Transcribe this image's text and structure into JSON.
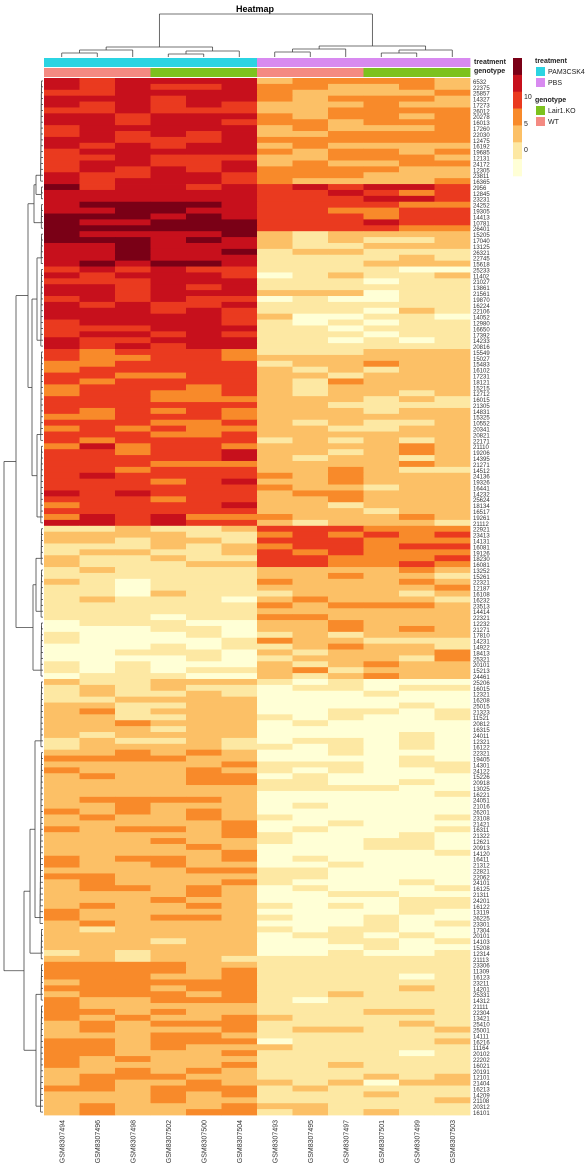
{
  "chart_data": {
    "type": "heatmap",
    "title": "Heatmap",
    "columns": [
      "GSM8307494",
      "GSM8307496",
      "GSM8307498",
      "GSM8307502",
      "GSM8307500",
      "GSM8307504",
      "GSM8307493",
      "GSM8307495",
      "GSM8307497",
      "GSM8307501",
      "GSM8307499",
      "GSM8307503"
    ],
    "annotations": {
      "treatment": {
        "label": "treatment",
        "values": [
          "PAM3CSK4",
          "PAM3CSK4",
          "PAM3CSK4",
          "PAM3CSK4",
          "PAM3CSK4",
          "PAM3CSK4",
          "PBS",
          "PBS",
          "PBS",
          "PBS",
          "PBS",
          "PBS"
        ]
      },
      "genotype": {
        "label": "genotype",
        "values": [
          "WT",
          "WT",
          "WT",
          "Lair1.KO",
          "Lair1.KO",
          "Lair1.KO",
          "WT",
          "WT",
          "WT",
          "Lair1.KO",
          "Lair1.KO",
          "Lair1.KO"
        ]
      }
    },
    "legend": {
      "color_scale": {
        "ticks": [
          10,
          5,
          0
        ],
        "colors": [
          "#7a0016",
          "#c7101c",
          "#ea3a1f",
          "#f88a2a",
          "#fcc066",
          "#fde8a3",
          "#ffffd6"
        ]
      },
      "treatment": {
        "title": "treatment",
        "entries": [
          {
            "label": "PAM3CSK4",
            "color": "#2bd4e2"
          },
          {
            "label": "PBS",
            "color": "#d88af0"
          }
        ]
      },
      "genotype": {
        "title": "genotype",
        "entries": [
          {
            "label": "Lair1.KO",
            "color": "#7dc21e"
          },
          {
            "label": "WT",
            "color": "#f48a82"
          }
        ]
      }
    },
    "row_labels": [
      "6532",
      "22375",
      "25857",
      "14327",
      "17273",
      "26012",
      "20278",
      "16013",
      "17260",
      "22030",
      "12475",
      "16192",
      "19685",
      "12131",
      "24172",
      "12305",
      "23811",
      "16365",
      "2956",
      "12845",
      "23231",
      "24252",
      "19305",
      "14413",
      "10781",
      "26401",
      "15205",
      "17040",
      "13125",
      "26321",
      "22745",
      "15618",
      "25233",
      "11402",
      "21027",
      "13861",
      "21561",
      "19870",
      "16224",
      "22106",
      "14052",
      "12980",
      "16650",
      "17392",
      "14233",
      "20816",
      "15549",
      "15027",
      "15483",
      "16102",
      "17231",
      "18121",
      "15215",
      "12712",
      "16015",
      "21305",
      "14831",
      "15325",
      "10552",
      "20341",
      "20821",
      "22171",
      "21110",
      "19206",
      "14395",
      "21271",
      "14512",
      "24136",
      "19326",
      "16441",
      "14232",
      "25624",
      "18134",
      "16517",
      "19261",
      "21112",
      "22921",
      "23413",
      "14131",
      "16081",
      "19126",
      "18230",
      "16081",
      "13252",
      "15261",
      "22321",
      "12187",
      "16108",
      "16232",
      "23513",
      "14414",
      "22321",
      "12232",
      "21271",
      "17810",
      "14231",
      "14922",
      "18413",
      "25321",
      "20101",
      "15213",
      "24461",
      "25206",
      "16015",
      "12321",
      "16208",
      "25015",
      "21323",
      "11521",
      "20812",
      "16315",
      "24011",
      "12321",
      "16122",
      "22321",
      "19405",
      "14301",
      "24122",
      "15226",
      "20918",
      "13025",
      "16221",
      "24051",
      "21016",
      "26201",
      "23108",
      "21421",
      "16311",
      "21322",
      "12621",
      "20913",
      "14120",
      "16411",
      "21312",
      "22821",
      "22062",
      "24101",
      "16125",
      "21311",
      "24201",
      "16122",
      "13119",
      "26225",
      "23301",
      "17304",
      "20101",
      "14103",
      "15208",
      "12314",
      "21113",
      "23306",
      "11309",
      "16123",
      "23211",
      "14201",
      "25331",
      "14312",
      "21111",
      "22304",
      "13421",
      "25410",
      "25001",
      "14111",
      "16216",
      "11164",
      "20102",
      "22202",
      "16021",
      "20191",
      "12101",
      "21404",
      "16213",
      "14209",
      "21108",
      "20312",
      "16101"
    ],
    "value_range": [
      -1,
      12
    ],
    "grid_on": false
  }
}
